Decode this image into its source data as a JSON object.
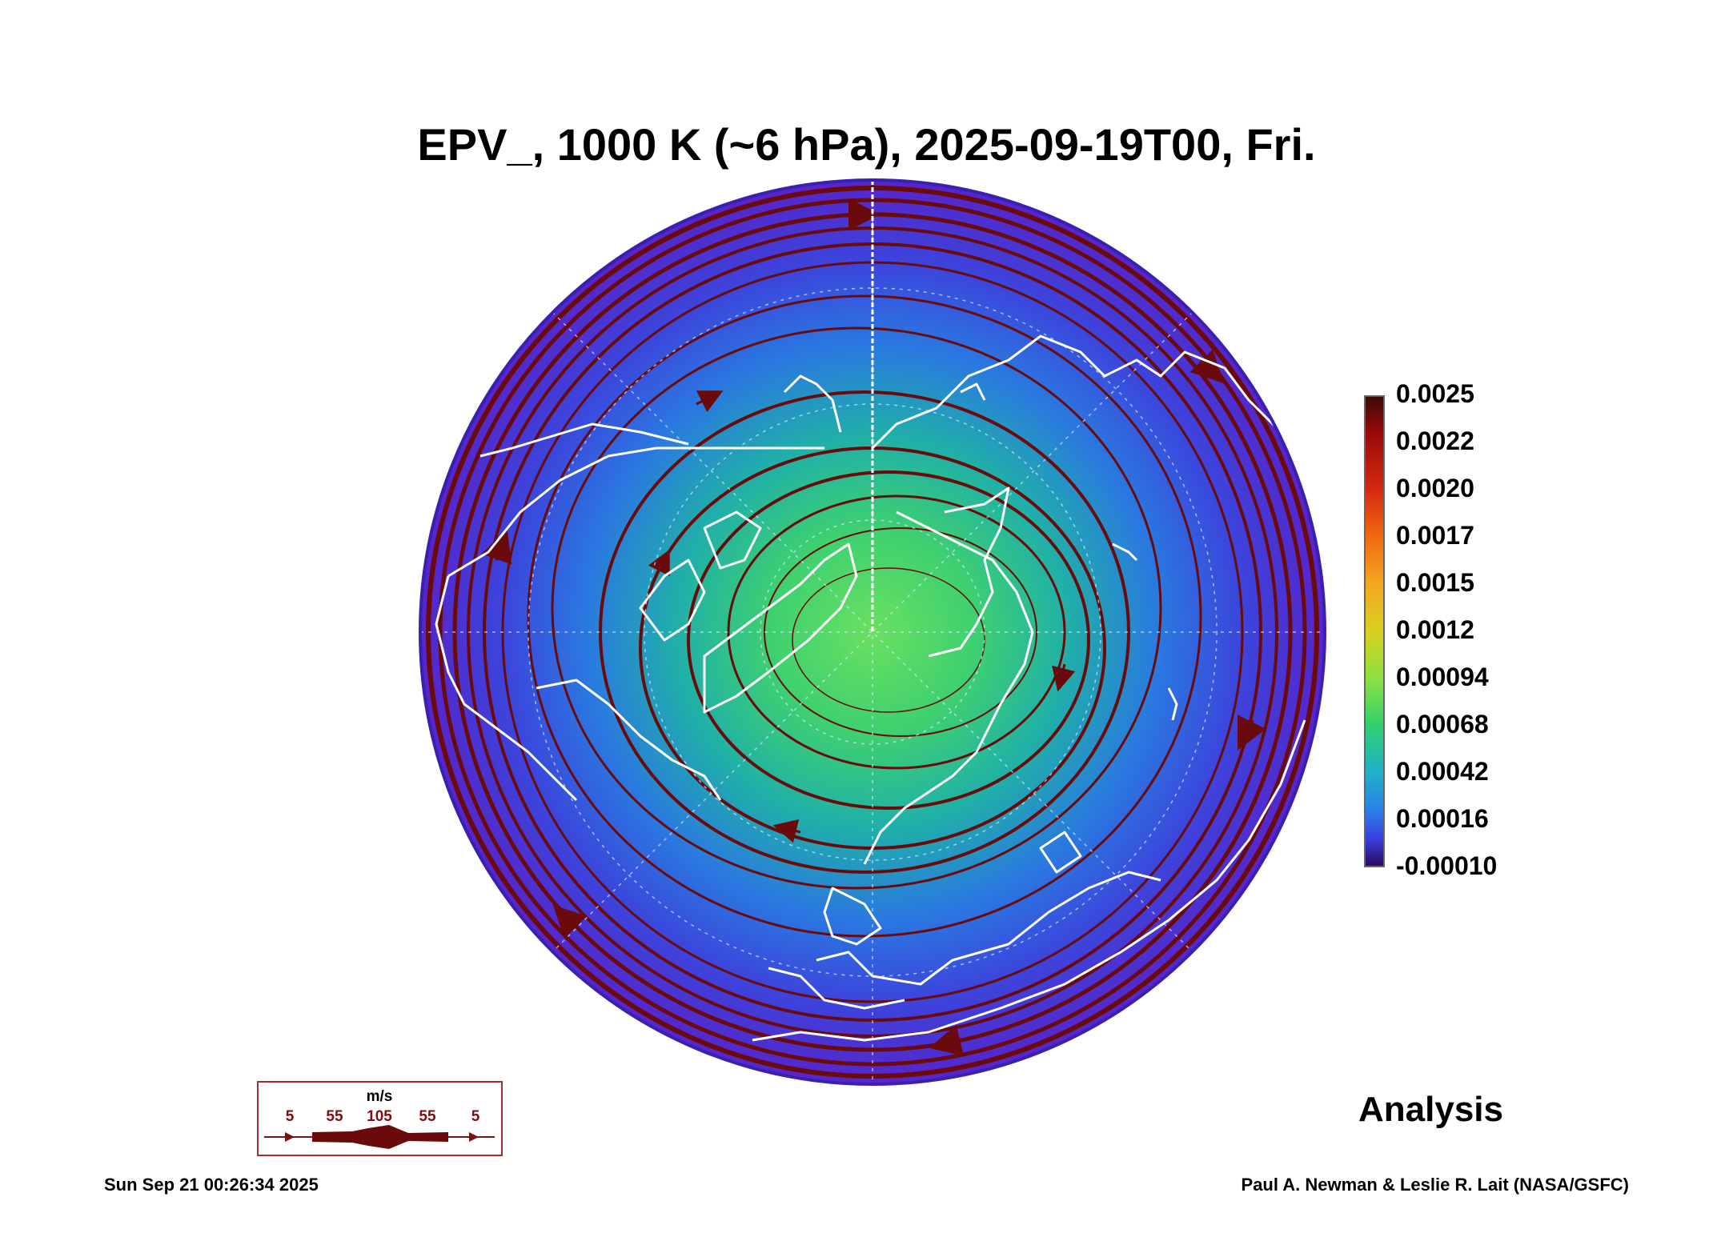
{
  "title": "EPV_, 1000 K (~6 hPa), 2025-09-19T00, Fri.",
  "colorbar": {
    "labels": [
      "0.0025",
      "0.0022",
      "0.0020",
      "0.0017",
      "0.0015",
      "0.0012",
      "0.00094",
      "0.00068",
      "0.00042",
      "0.00016",
      "-0.00010"
    ],
    "colors": [
      "#3a0a0a",
      "#9b0a0a",
      "#d62a10",
      "#f06a10",
      "#f5a820",
      "#d8d020",
      "#8de040",
      "#30d070",
      "#20b0c8",
      "#2a80e8",
      "#3a40e0",
      "#4a10c8",
      "#2a0860"
    ]
  },
  "map": {
    "projection": "north-polar-stereographic",
    "ocean_fill": "#3a4ad8",
    "vortex_fill": "#38c878",
    "coast_color": "#ffffff",
    "streamline_color": "#6a0a0a"
  },
  "wind_legend": {
    "unit": "m/s",
    "speeds": [
      "5",
      "55",
      "105",
      "55",
      "5"
    ],
    "color": "#6a0a0a"
  },
  "analysis_label": "Analysis",
  "footer": {
    "timestamp": "Sun Sep 21 00:26:34 2025",
    "credit": "Paul A. Newman & Leslie R. Lait (NASA/GSFC)"
  }
}
